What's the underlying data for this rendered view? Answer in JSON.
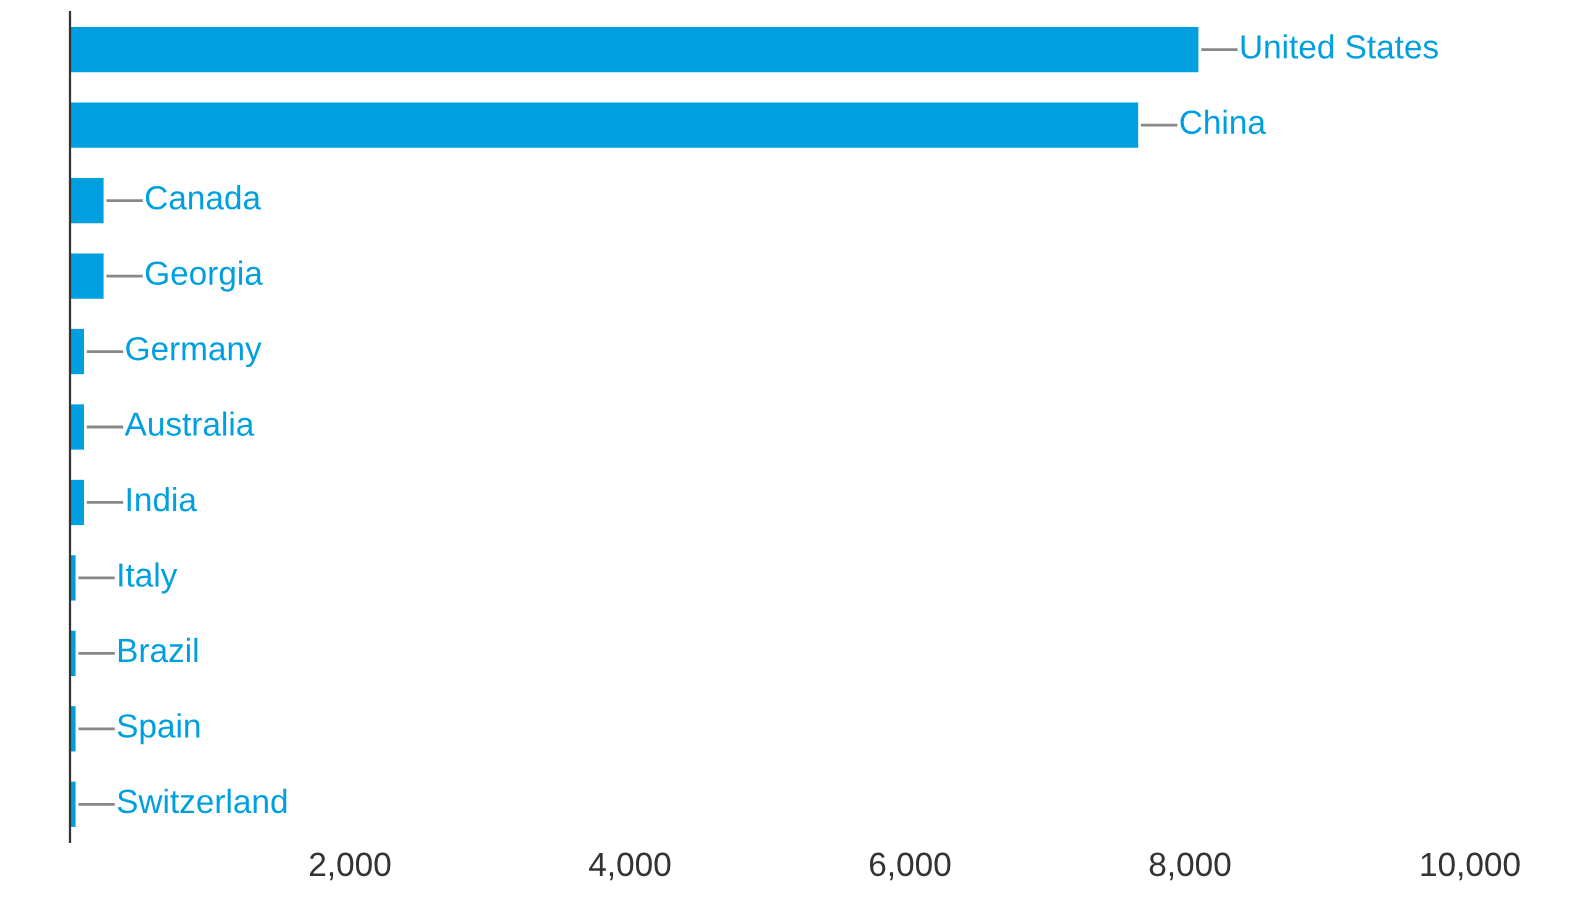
{
  "chart_data": {
    "type": "bar",
    "orientation": "horizontal",
    "categories": [
      "United States",
      "China",
      "Canada",
      "Georgia",
      "Germany",
      "Australia",
      "India",
      "Italy",
      "Brazil",
      "Spain",
      "Switzerland"
    ],
    "values": [
      8060,
      7630,
      240,
      240,
      100,
      100,
      100,
      40,
      40,
      40,
      40
    ],
    "color": "#009fe0",
    "xlim": [
      0,
      10000
    ],
    "xticks": [
      {
        "value": 2000,
        "label": "2,000"
      },
      {
        "value": 4000,
        "label": "4,000"
      },
      {
        "value": 6000,
        "label": "6,000"
      },
      {
        "value": 8000,
        "label": "8,000"
      },
      {
        "value": 10000,
        "label": "10,000"
      }
    ],
    "tick_labels": "x",
    "grid": false,
    "legend": false
  }
}
